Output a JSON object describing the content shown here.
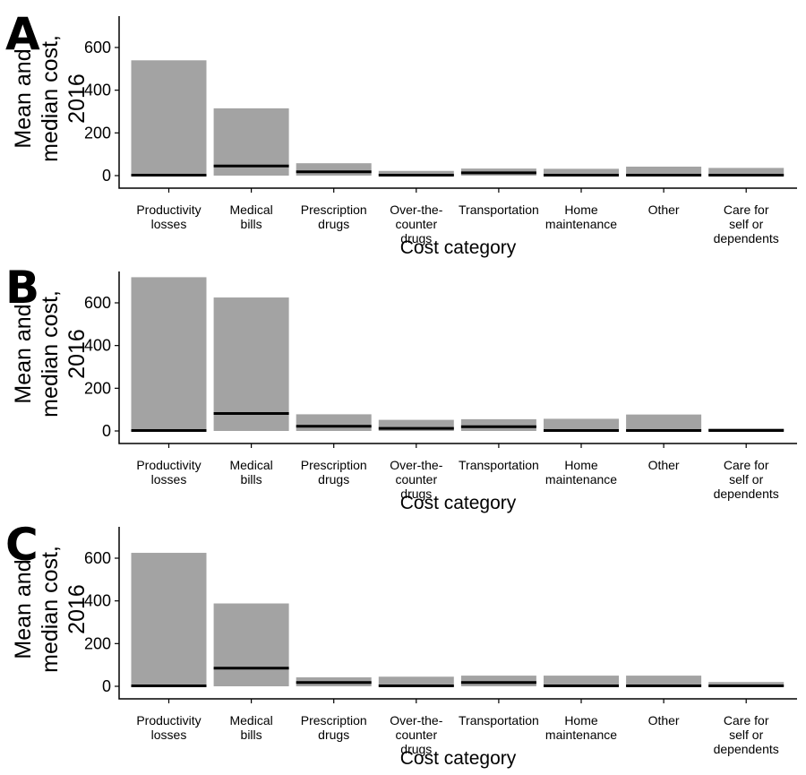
{
  "chart_data": [
    {
      "type": "bar",
      "panel": "A",
      "categories": [
        "Productivity losses",
        "Medical bills",
        "Prescription drugs",
        "Over-the-counter drugs",
        "Transportation",
        "Home maintenance",
        "Other",
        "Care for self or dependents"
      ],
      "tick_lines": [
        [
          "Productivity",
          "losses"
        ],
        [
          "Medical",
          "bills"
        ],
        [
          "Prescription",
          "drugs"
        ],
        [
          "Over-the-",
          "counter",
          "drugs"
        ],
        [
          "Transportation"
        ],
        [
          "Home",
          "maintenance"
        ],
        [
          "Other"
        ],
        [
          "Care for",
          "self or",
          "dependents"
        ]
      ],
      "series": [
        {
          "values": [
            540,
            315,
            58,
            22,
            33,
            32,
            42,
            36
          ]
        },
        {
          "values": [
            2,
            45,
            18,
            2,
            13,
            2,
            2,
            2
          ]
        }
      ],
      "ylabel": [
        "Mean and",
        "median cost,",
        "2016"
      ],
      "xlabel": "Cost category",
      "ylim": [
        0,
        750
      ],
      "yticks": [
        0,
        200,
        400,
        600
      ]
    },
    {
      "type": "bar",
      "panel": "B",
      "categories": [
        "Productivity losses",
        "Medical bills",
        "Prescription drugs",
        "Over-the-counter drugs",
        "Transportation",
        "Home maintenance",
        "Other",
        "Care for self or dependents"
      ],
      "tick_lines": [
        [
          "Productivity",
          "losses"
        ],
        [
          "Medical",
          "bills"
        ],
        [
          "Prescription",
          "drugs"
        ],
        [
          "Over-the-",
          "counter",
          "drugs"
        ],
        [
          "Transportation"
        ],
        [
          "Home",
          "maintenance"
        ],
        [
          "Other"
        ],
        [
          "Care for",
          "self or",
          "dependents"
        ]
      ],
      "series": [
        {
          "values": [
            720,
            625,
            78,
            52,
            55,
            57,
            77,
            12
          ]
        },
        {
          "values": [
            2,
            82,
            22,
            12,
            20,
            2,
            2,
            2
          ]
        }
      ],
      "ylabel": [
        "Mean and",
        "median cost,",
        "2016"
      ],
      "xlabel": "Cost category",
      "ylim": [
        0,
        750
      ],
      "yticks": [
        0,
        200,
        400,
        600
      ]
    },
    {
      "type": "bar",
      "panel": "C",
      "categories": [
        "Productivity losses",
        "Medical bills",
        "Prescription drugs",
        "Over-the-counter drugs",
        "Transportation",
        "Home maintenance",
        "Other",
        "Care for self or dependents"
      ],
      "tick_lines": [
        [
          "Productivity",
          "losses"
        ],
        [
          "Medical",
          "bills"
        ],
        [
          "Prescription",
          "drugs"
        ],
        [
          "Over-the-",
          "counter",
          "drugs"
        ],
        [
          "Transportation"
        ],
        [
          "Home",
          "maintenance"
        ],
        [
          "Other"
        ],
        [
          "Care for",
          "self or",
          "dependents"
        ]
      ],
      "series": [
        {
          "values": [
            625,
            388,
            42,
            45,
            50,
            50,
            50,
            20
          ]
        },
        {
          "values": [
            2,
            85,
            18,
            2,
            18,
            2,
            2,
            2
          ]
        }
      ],
      "ylabel": [
        "Mean and",
        "median cost,",
        "2016"
      ],
      "xlabel": "Cost category",
      "ylim": [
        0,
        750
      ],
      "yticks": [
        0,
        200,
        400,
        600
      ]
    }
  ]
}
